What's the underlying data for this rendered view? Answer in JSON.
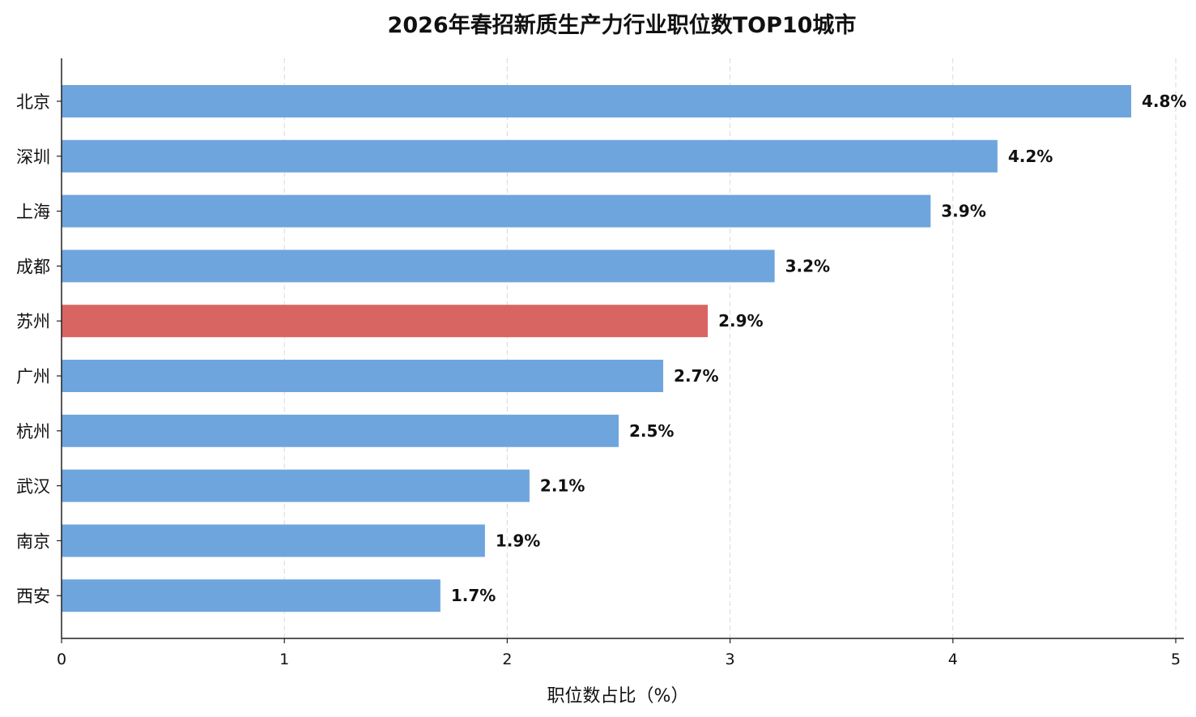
{
  "chart_data": {
    "type": "bar",
    "orientation": "horizontal",
    "title": "2026年春招新质生产力行业职位数TOP10城市",
    "xlabel": "职位数占比（%）",
    "ylabel": "",
    "xlim": [
      0,
      5
    ],
    "xticks": [
      "0",
      "1",
      "2",
      "3",
      "4",
      "5"
    ],
    "grid": "vertical-dashed",
    "categories": [
      "北京",
      "深圳",
      "上海",
      "成都",
      "苏州",
      "广州",
      "杭州",
      "武汉",
      "南京",
      "西安"
    ],
    "values": [
      4.8,
      4.2,
      3.9,
      3.2,
      2.9,
      2.7,
      2.5,
      2.1,
      1.9,
      1.7
    ],
    "value_labels": [
      "4.8%",
      "4.2%",
      "3.9%",
      "3.2%",
      "2.9%",
      "2.7%",
      "2.5%",
      "2.1%",
      "1.9%",
      "1.7%"
    ],
    "highlight_category": "苏州",
    "colors": {
      "default": "#6fa5dd",
      "highlight": "#d96562"
    }
  }
}
